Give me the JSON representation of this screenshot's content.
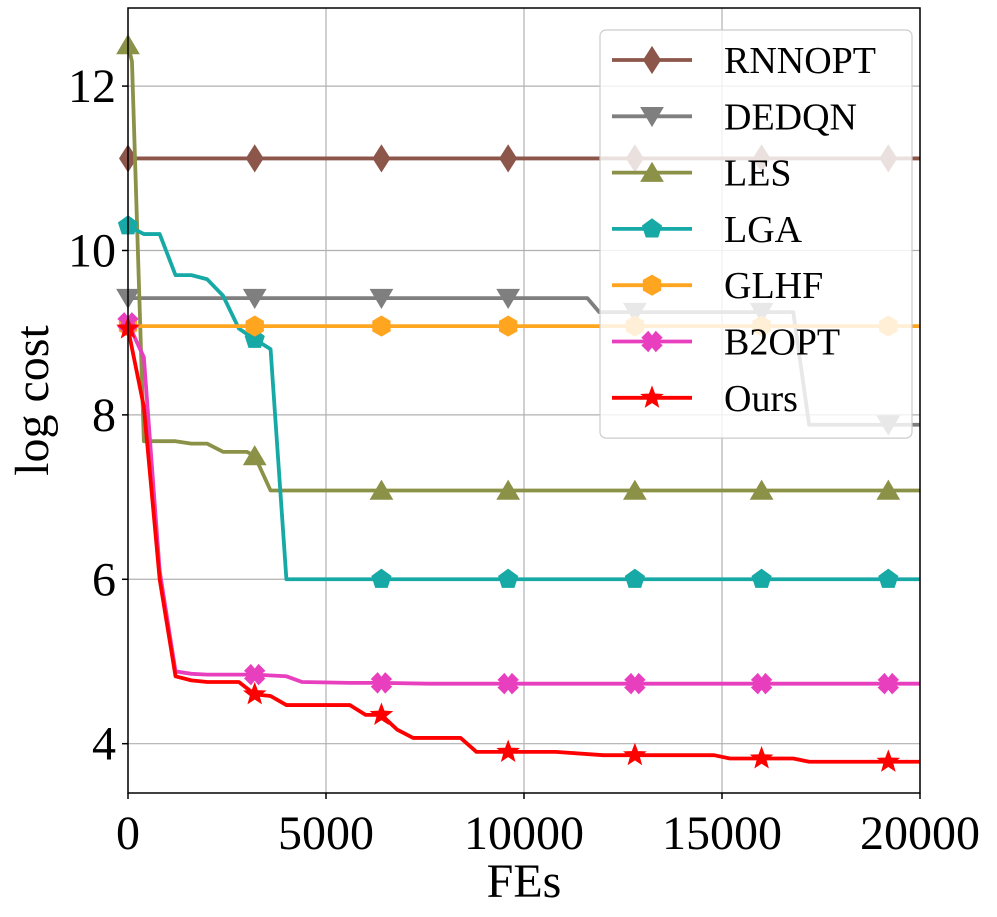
{
  "chart_data": {
    "type": "line",
    "title": "",
    "xlabel": "FEs",
    "ylabel": "log cost",
    "xlim": [
      0,
      20000
    ],
    "ylim": [
      3.4,
      12.95
    ],
    "xticks": [
      0,
      5000,
      10000,
      15000,
      20000
    ],
    "xtick_labels": [
      "0",
      "5000",
      "10000",
      "15000",
      "20000"
    ],
    "yticks": [
      4,
      6,
      8,
      10,
      12
    ],
    "ytick_labels": [
      "4",
      "6",
      "8",
      "10",
      "12"
    ],
    "grid": true,
    "legend_position": "top-right",
    "marker_x": [
      0,
      3200,
      6400,
      9600,
      12800,
      16000,
      19200
    ],
    "series": [
      {
        "name": "RNNOPT",
        "color": "#8c564b",
        "marker": "diamond",
        "x": [
          0,
          20000
        ],
        "y": [
          11.12,
          11.12
        ]
      },
      {
        "name": "DEDQN",
        "color": "#7f7f7f",
        "marker": "triangle-down",
        "x": [
          0,
          11600,
          11900,
          16800,
          17200,
          20000
        ],
        "y": [
          9.42,
          9.42,
          9.25,
          9.25,
          7.88,
          7.88
        ]
      },
      {
        "name": "LES",
        "color": "#8c9148",
        "marker": "triangle-up",
        "x": [
          0,
          100,
          400,
          1200,
          1600,
          2000,
          2400,
          3000,
          3200,
          3600,
          20000
        ],
        "y": [
          12.5,
          12.3,
          7.68,
          7.68,
          7.65,
          7.65,
          7.55,
          7.55,
          7.5,
          7.08,
          7.08
        ]
      },
      {
        "name": "LGA",
        "color": "#17a9a5",
        "marker": "pentagon",
        "x": [
          0,
          400,
          800,
          1200,
          1600,
          2000,
          2400,
          2800,
          3200,
          3600,
          4000,
          20000
        ],
        "y": [
          10.3,
          10.2,
          10.2,
          9.7,
          9.7,
          9.65,
          9.45,
          9.05,
          8.92,
          8.8,
          6.0,
          6.0
        ],
        "marker_y": [
          10.3,
          8.92,
          6.0,
          6.0,
          6.0,
          6.0,
          6.0
        ]
      },
      {
        "name": "GLHF",
        "color": "#ffa520",
        "marker": "hexagon",
        "x": [
          0,
          20000
        ],
        "y": [
          9.08,
          9.08
        ]
      },
      {
        "name": "B2OPT",
        "color": "#e83fbf",
        "marker": "x",
        "x": [
          0,
          400,
          800,
          1200,
          1600,
          2000,
          3200,
          4000,
          4400,
          5600,
          6400,
          7600,
          20000
        ],
        "y": [
          9.12,
          8.7,
          6.1,
          4.88,
          4.85,
          4.84,
          4.84,
          4.82,
          4.75,
          4.74,
          4.74,
          4.73,
          4.73
        ],
        "marker_y": [
          9.12,
          4.84,
          4.74,
          4.73,
          4.73,
          4.73,
          4.73
        ]
      },
      {
        "name": "Ours",
        "color": "#ff0000",
        "marker": "star",
        "x": [
          0,
          400,
          800,
          1200,
          1600,
          2000,
          2800,
          3200,
          3600,
          4000,
          5600,
          6000,
          6400,
          6800,
          7200,
          8000,
          8400,
          8800,
          10800,
          12000,
          14800,
          15200,
          16800,
          17200,
          20000
        ],
        "y": [
          9.05,
          8.1,
          6.0,
          4.82,
          4.77,
          4.75,
          4.75,
          4.6,
          4.58,
          4.47,
          4.47,
          4.35,
          4.35,
          4.17,
          4.07,
          4.07,
          4.07,
          3.9,
          3.9,
          3.86,
          3.86,
          3.82,
          3.82,
          3.78,
          3.78
        ],
        "marker_y": [
          9.05,
          4.6,
          4.35,
          3.9,
          3.86,
          3.82,
          3.78
        ]
      }
    ]
  }
}
